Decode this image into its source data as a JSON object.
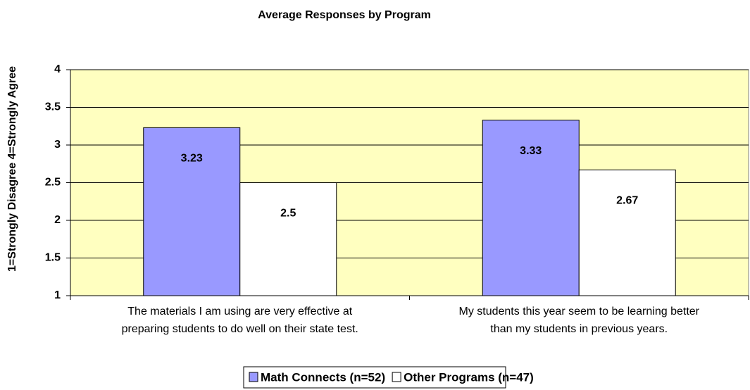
{
  "chart_data": {
    "type": "bar",
    "title": "Average Responses by Program",
    "y_label": "1=Strongly Disagree  4=Strongly Agree",
    "categories": [
      [
        "The materials I am using are very effective at",
        "preparing students to do well on their state test."
      ],
      [
        "My students this year seem to be learning better",
        "than my students in previous years."
      ]
    ],
    "series": [
      {
        "name": "Math Connects (n=52)",
        "color": "#9999ff",
        "values": [
          3.23,
          3.33
        ]
      },
      {
        "name": "Other Programs (n=47)",
        "color": "#ffffff",
        "values": [
          2.5,
          2.67
        ]
      }
    ],
    "ylim": [
      1,
      4
    ],
    "yticks": [
      1,
      1.5,
      2,
      2.5,
      3,
      3.5,
      4
    ],
    "grid": true,
    "plot_background": "#ffffc0",
    "legend": "bottom"
  }
}
